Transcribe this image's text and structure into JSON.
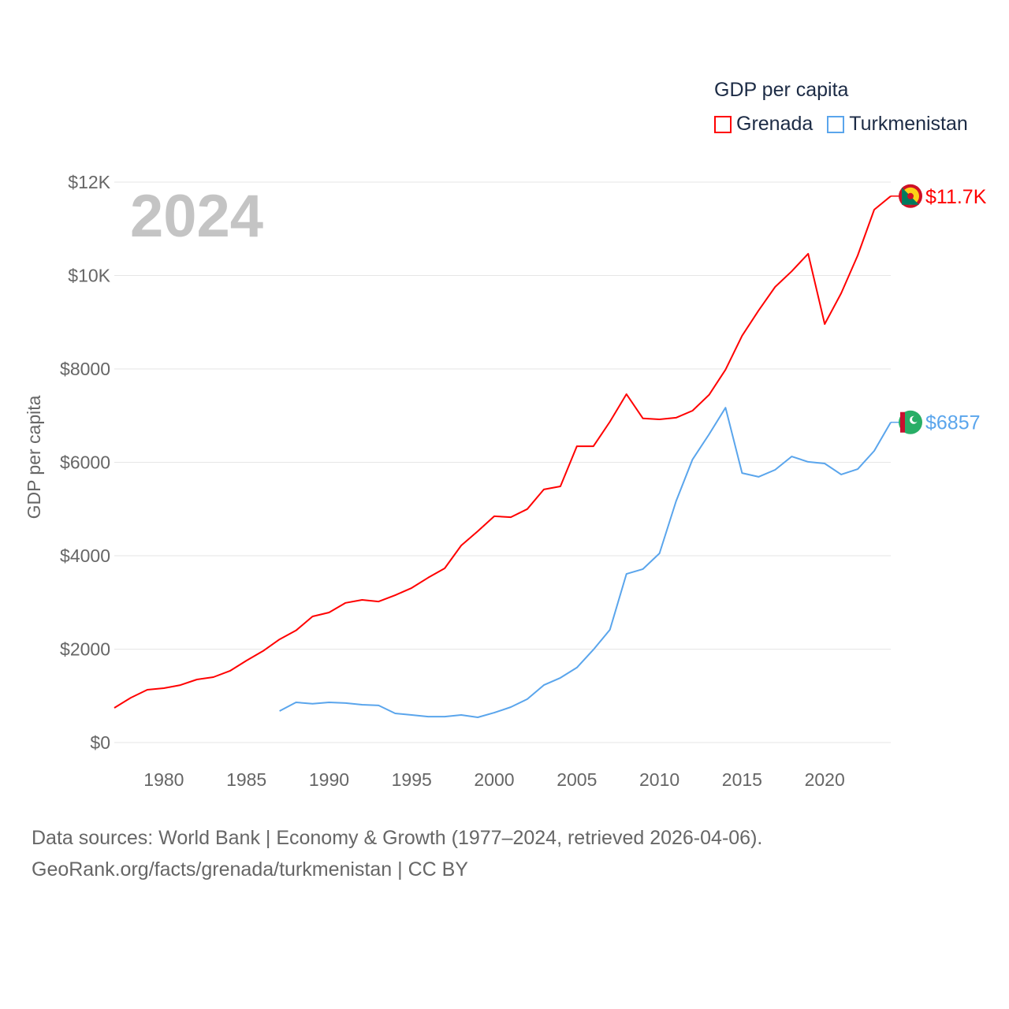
{
  "chart_data": {
    "type": "line",
    "title": "GDP per capita",
    "ylabel": "GDP per capita",
    "xlabel": "",
    "year_label": "2024",
    "ylim": [
      0,
      12000
    ],
    "xlim": [
      1977,
      2024
    ],
    "yticks": [
      0,
      2000,
      4000,
      6000,
      8000,
      10000,
      12000
    ],
    "ytick_labels": [
      "$0",
      "$2000",
      "$4000",
      "$6000",
      "$8000",
      "$10K",
      "$12K"
    ],
    "xticks": [
      1980,
      1985,
      1990,
      1995,
      2000,
      2005,
      2010,
      2015,
      2020
    ],
    "xtick_labels": [
      "1980",
      "1985",
      "1990",
      "1995",
      "2000",
      "2005",
      "2010",
      "2015",
      "2020"
    ],
    "grid": true,
    "legend_position": "top-right",
    "series": [
      {
        "name": "Grenada",
        "color": "#ff0000",
        "end_label": "$11.7K",
        "x_start": 1977,
        "values": [
          743,
          960,
          1130,
          1165,
          1230,
          1350,
          1400,
          1535,
          1755,
          1960,
          2210,
          2400,
          2700,
          2785,
          2990,
          3055,
          3020,
          3155,
          3310,
          3530,
          3730,
          4220,
          4525,
          4845,
          4825,
          5000,
          5420,
          5485,
          6345,
          6345,
          6870,
          7460,
          6940,
          6920,
          6955,
          7105,
          7445,
          7985,
          8710,
          9250,
          9755,
          10090,
          10465,
          8960,
          9620,
          10430,
          11410,
          11700
        ]
      },
      {
        "name": "Turkmenistan",
        "color": "#5aa5ec",
        "end_label": "$6857",
        "x_start": 1987,
        "values": [
          675,
          860,
          830,
          860,
          845,
          810,
          795,
          625,
          590,
          555,
          555,
          590,
          540,
          640,
          760,
          930,
          1230,
          1385,
          1605,
          1990,
          2415,
          3610,
          3715,
          4050,
          5165,
          6060,
          6600,
          7170,
          5770,
          5690,
          5840,
          6125,
          6010,
          5975,
          5740,
          5855,
          6245,
          6857
        ]
      }
    ]
  },
  "footer": {
    "line1": "Data sources: World Bank | Economy & Growth (1977–2024, retrieved 2026-04-06).",
    "line2": "GeoRank.org/facts/grenada/turkmenistan | CC BY"
  }
}
